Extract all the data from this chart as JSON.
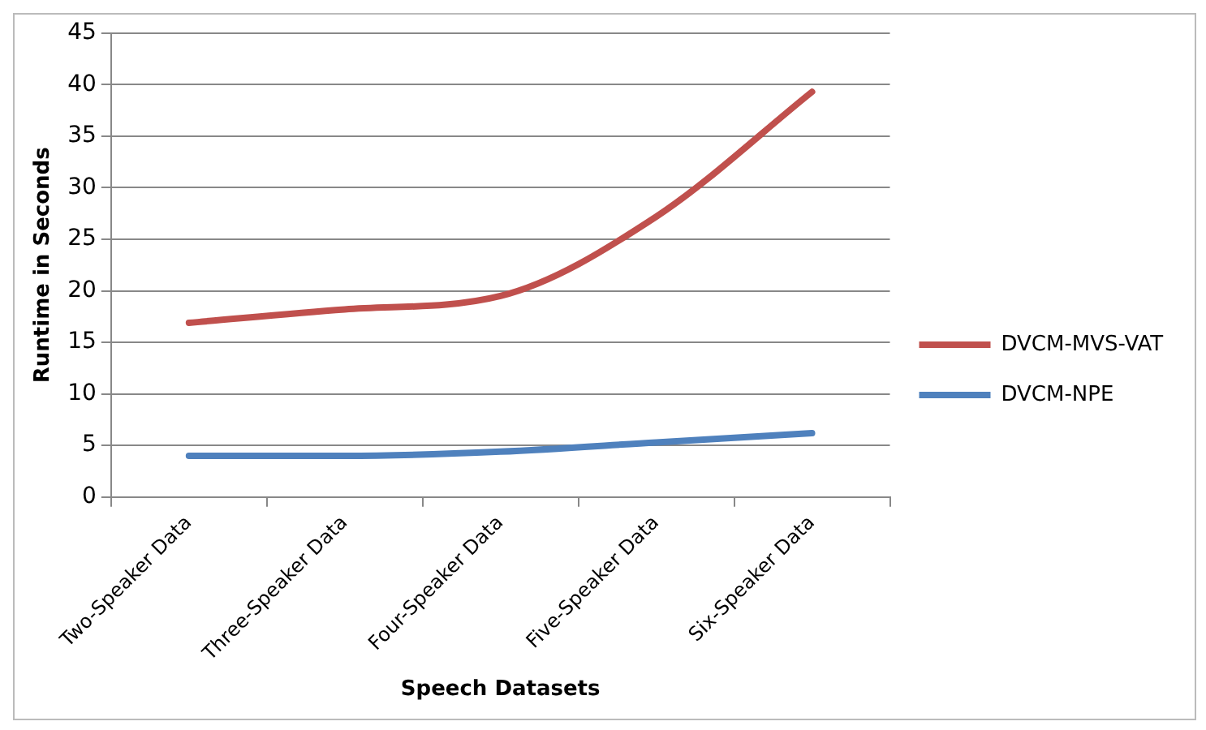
{
  "chart_data": {
    "type": "line",
    "xlabel": "Speech Datasets",
    "ylabel": "Runtime in Seconds",
    "categories": [
      "Two-Speaker Data",
      "Three-Speaker Data",
      "Four-Speaker Data",
      "Five-Speaker Data",
      "Six-Speaker Data"
    ],
    "series": [
      {
        "name": "DVCM-MVS-VAT",
        "color": "#c0504d",
        "values": [
          16.9,
          18.2,
          19.5,
          27.2,
          39.3
        ]
      },
      {
        "name": "DVCM-NPE",
        "color": "#4f81bd",
        "values": [
          4.0,
          4.0,
          4.4,
          5.3,
          6.2
        ]
      }
    ],
    "ylim": [
      0,
      45
    ],
    "yticks": [
      0,
      5,
      10,
      15,
      20,
      25,
      30,
      35,
      40,
      45
    ],
    "grid": "y",
    "legend": "right",
    "marker": "none",
    "line_style": "solid"
  }
}
